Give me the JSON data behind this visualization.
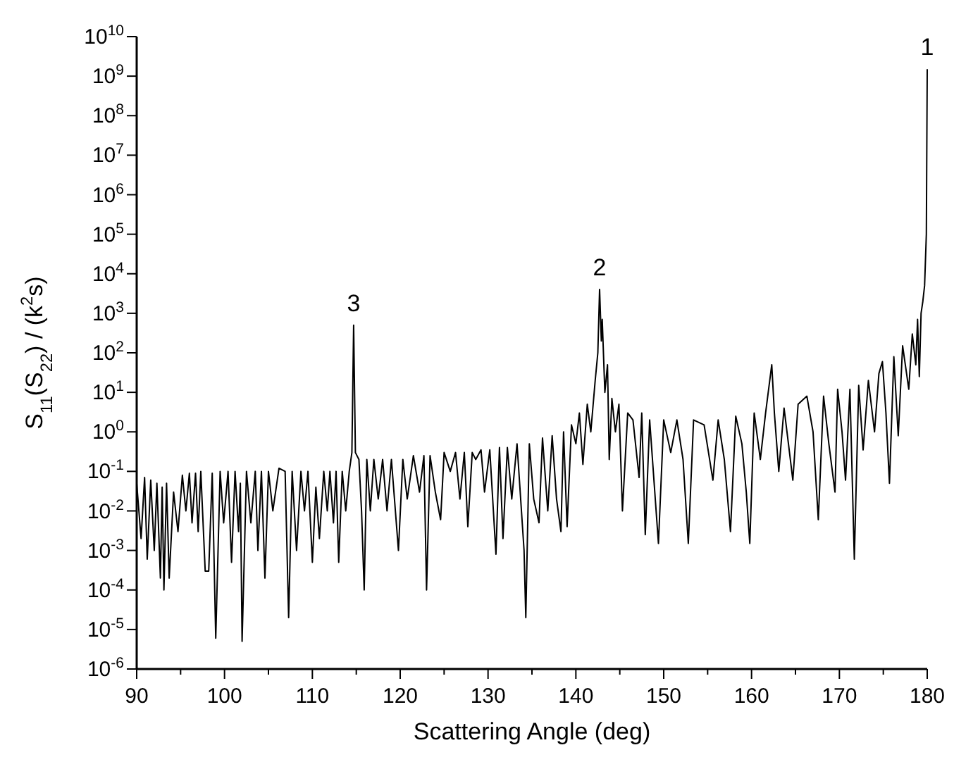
{
  "chart_data": {
    "type": "line",
    "xlabel": "Scattering Angle (deg)",
    "ylabel": "S$_{11}$(S$_{22}$) / (k$^{2}$s)",
    "log": "y",
    "xlim": [
      90,
      180
    ],
    "ylim": [
      1e-06,
      10000000000.0
    ],
    "xticks": [
      90,
      {
        "value": 95,
        "label": null
      },
      100,
      {
        "value": 105,
        "label": null
      },
      110,
      {
        "value": 115,
        "label": null
      },
      120,
      {
        "value": 125,
        "label": null
      },
      130,
      {
        "value": 135,
        "label": null
      },
      140,
      {
        "value": 145,
        "label": null
      },
      150,
      {
        "value": 155,
        "label": null
      },
      160,
      {
        "value": 165,
        "label": null
      },
      170,
      {
        "value": 175,
        "label": null
      },
      180
    ],
    "yticks": [
      {
        "value": 1e-06,
        "label": "10$^{-6}$"
      },
      {
        "value": 1e-05,
        "label": "10$^{-5}$"
      },
      {
        "value": 0.0001,
        "label": "10$^{-4}$"
      },
      {
        "value": 0.001,
        "label": "10$^{-3}$"
      },
      {
        "value": 0.01,
        "label": "10$^{-2}$"
      },
      {
        "value": 0.1,
        "label": "10$^{-1}$"
      },
      {
        "value": 1,
        "label": "10$^{0}$"
      },
      {
        "value": 10,
        "label": "10$^{1}$"
      },
      {
        "value": 100,
        "label": "10$^{2}$"
      },
      {
        "value": 1000,
        "label": "10$^{3}$"
      },
      {
        "value": 10000.0,
        "label": "10$^{4}$"
      },
      {
        "value": 100000.0,
        "label": "10$^{5}$"
      },
      {
        "value": 1000000.0,
        "label": "10$^{6}$"
      },
      {
        "value": 10000000.0,
        "label": "10$^{7}$"
      },
      {
        "value": 100000000.0,
        "label": "10$^{8}$"
      },
      {
        "value": 1000000000.0,
        "label": "10$^{9}$"
      },
      {
        "value": 10000000000.0,
        "label": "10$^{10}$"
      }
    ],
    "annotations": [
      {
        "text": "1",
        "x": 180,
        "y": 1500000000
      },
      {
        "text": "2",
        "x": 142.7,
        "y": 4000
      },
      {
        "text": "3",
        "x": 114.7,
        "y": 500
      }
    ],
    "series": [
      {
        "color": "#000000",
        "x": [
          90,
          90.5,
          90.9,
          91.2,
          91.6,
          92,
          92.3,
          92.7,
          92.9,
          93.1,
          93.4,
          93.7,
          94.2,
          94.7,
          95.2,
          95.6,
          96,
          96.3,
          96.7,
          97,
          97.3,
          97.8,
          98.2,
          98.6,
          99,
          99.5,
          99.9,
          100.4,
          100.8,
          101.2,
          101.6,
          101.8,
          102,
          102.5,
          103,
          103.5,
          103.8,
          104.2,
          104.6,
          105,
          105.5,
          106.2,
          106.9,
          107.3,
          107.7,
          108.2,
          108.7,
          109.1,
          109.5,
          110,
          110.4,
          110.8,
          111.3,
          111.7,
          112,
          112.4,
          112.7,
          113,
          113.4,
          113.8,
          114.2,
          114.5,
          114.7,
          114.9,
          115.3,
          115.6,
          115.9,
          116.2,
          116.6,
          117,
          117.5,
          118,
          118.5,
          119,
          119.8,
          120.3,
          120.8,
          121.5,
          122.2,
          122.7,
          123,
          123.4,
          124,
          124.6,
          125,
          125.7,
          126.3,
          126.8,
          127.3,
          127.7,
          128.2,
          128.6,
          129.2,
          129.6,
          130.2,
          130.9,
          131.3,
          131.7,
          132.2,
          132.7,
          133.3,
          134.1,
          134.3,
          134.7,
          135.2,
          135.8,
          136.2,
          136.8,
          137.3,
          137.8,
          138.3,
          138.6,
          139,
          139.5,
          140,
          140.4,
          140.8,
          141.3,
          141.7,
          142.2,
          142.5,
          142.7,
          142.9,
          143,
          143.3,
          143.6,
          143.8,
          144.1,
          144.5,
          144.9,
          145.3,
          145.9,
          146.5,
          147.2,
          147.5,
          147.9,
          148.4,
          149.4,
          150,
          150.8,
          151.5,
          152.2,
          152.8,
          153.4,
          154.6,
          155.6,
          156.2,
          156.9,
          157.6,
          158.2,
          158.9,
          159.4,
          159.8,
          160.3,
          161,
          161.6,
          162.3,
          162.6,
          163.1,
          163.7,
          164.2,
          164.7,
          165.3,
          166.3,
          167,
          167.6,
          168.2,
          168.8,
          169.5,
          169.8,
          170.3,
          170.7,
          171.2,
          171.7,
          172.2,
          172.7,
          173.3,
          174,
          174.5,
          174.9,
          175.3,
          175.7,
          176.2,
          176.7,
          177.2,
          177.9,
          178.3,
          178.7,
          178.9,
          179.1,
          179.3,
          179.5,
          179.7,
          179.9,
          180
        ],
        "values": [
          0.05,
          0.002,
          0.07,
          0.0006,
          0.06,
          0.001,
          0.05,
          0.0002,
          0.04,
          0.0001,
          0.05,
          0.0002,
          0.03,
          0.003,
          0.08,
          0.01,
          0.09,
          0.005,
          0.09,
          0.003,
          0.1,
          0.0003,
          0.0003,
          0.09,
          6e-06,
          0.1,
          0.005,
          0.1,
          0.0005,
          0.1,
          0.003,
          0.05,
          5e-06,
          0.1,
          0.005,
          0.1,
          0.001,
          0.1,
          0.0002,
          0.1,
          0.01,
          0.12,
          0.1,
          2e-05,
          0.1,
          0.001,
          0.1,
          0.01,
          0.1,
          0.0005,
          0.04,
          0.002,
          0.1,
          0.01,
          0.1,
          0.005,
          0.1,
          0.0005,
          0.1,
          0.01,
          0.1,
          0.3,
          500,
          0.3,
          0.2,
          0.01,
          0.0001,
          0.2,
          0.01,
          0.2,
          0.02,
          0.2,
          0.01,
          0.2,
          0.001,
          0.2,
          0.02,
          0.25,
          0.03,
          0.25,
          0.0001,
          0.25,
          0.03,
          0.006,
          0.3,
          0.1,
          0.3,
          0.02,
          0.3,
          0.004,
          0.3,
          0.2,
          0.35,
          0.03,
          0.35,
          0.0008,
          0.4,
          0.002,
          0.4,
          0.02,
          0.5,
          0.001,
          2e-05,
          0.5,
          0.02,
          0.005,
          0.7,
          0.01,
          0.8,
          0.02,
          0.003,
          1,
          0.004,
          1.5,
          0.5,
          3,
          0.15,
          5,
          1,
          20,
          100,
          4000,
          200,
          700,
          10,
          50,
          0.2,
          7,
          1,
          5,
          0.01,
          3,
          2,
          0.07,
          3,
          0.0025,
          2,
          0.0015,
          2,
          0.3,
          2,
          0.2,
          0.0015,
          2,
          1.5,
          0.06,
          2,
          0.2,
          0.003,
          2.5,
          0.5,
          0.03,
          0.0015,
          3,
          0.2,
          3,
          50,
          3,
          0.1,
          4,
          0.5,
          0.06,
          5,
          8,
          1,
          0.006,
          8,
          0.5,
          0.03,
          12,
          1,
          0.06,
          12,
          0.0006,
          15,
          0.35,
          20,
          1,
          30,
          60,
          3,
          0.05,
          80,
          0.8,
          150,
          12,
          300,
          50,
          700,
          25,
          1000,
          2000,
          5000,
          100000,
          1500000000
        ]
      }
    ]
  }
}
